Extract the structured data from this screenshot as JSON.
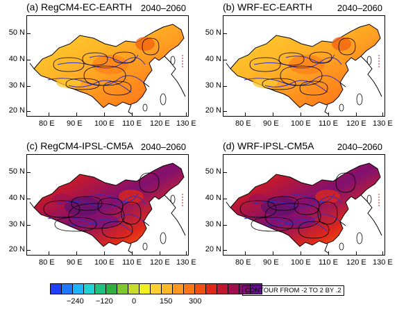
{
  "panels": [
    {
      "label": "(a) RegCM4-EC-EARTH",
      "period": "2040–2060",
      "style": "warm"
    },
    {
      "label": "(b) WRF-EC-EARTH",
      "period": "2040–2060",
      "style": "warm"
    },
    {
      "label": "(c) RegCM4-IPSL-CM5A",
      "period": "2040–2060",
      "style": "hot"
    },
    {
      "label": "(d) WRF-IPSL-CM5A",
      "period": "2040–2060",
      "style": "hot"
    }
  ],
  "x_ticks": [
    "80 E",
    "90 E",
    "100 E",
    "110 E",
    "120 E",
    "130 E"
  ],
  "y_ticks": [
    "50 N",
    "40 N",
    "30 N",
    "20 N"
  ],
  "colorbar": {
    "colors": [
      "#1e40ff",
      "#1e78ff",
      "#1eb4ff",
      "#20d2d2",
      "#20c080",
      "#30b040",
      "#80c830",
      "#c8dc30",
      "#f0f020",
      "#ffd030",
      "#ffb828",
      "#ff9820",
      "#ff7818",
      "#f05010",
      "#e02818",
      "#c01830",
      "#a01050",
      "#801070",
      "#6a1090"
    ],
    "labels": [
      "−240",
      "−120",
      "0",
      "150",
      "300"
    ]
  },
  "contour_note": "CONTOUR FROM -2 TO 2 BY .2"
}
